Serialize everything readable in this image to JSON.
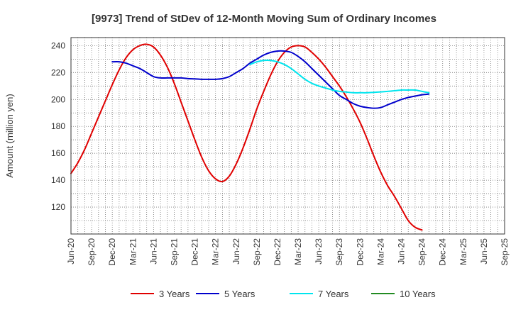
{
  "chart_data": {
    "type": "line",
    "title": "[9973]  Trend of StDev of 12-Month Moving Sum of Ordinary Incomes",
    "xlabel": "",
    "ylabel": "Amount (million yen)",
    "ylim": [
      100,
      246
    ],
    "yticks": [
      120,
      140,
      160,
      180,
      200,
      220,
      240
    ],
    "x_ticks": [
      "Jun-20",
      "Sep-20",
      "Dec-20",
      "Mar-21",
      "Jun-21",
      "Sep-21",
      "Dec-21",
      "Mar-22",
      "Jun-22",
      "Sep-22",
      "Dec-22",
      "Mar-23",
      "Jun-23",
      "Sep-23",
      "Dec-23",
      "Mar-24",
      "Jun-24",
      "Sep-24",
      "Dec-24",
      "Mar-25",
      "Jun-25",
      "Sep-25"
    ],
    "grid": true,
    "legend_position": "bottom",
    "series": [
      {
        "name": "3 Years",
        "color": "#e00000",
        "values": [
          [
            0,
            145
          ],
          [
            1,
            153
          ],
          [
            2,
            163
          ],
          [
            3,
            175
          ],
          [
            4,
            187
          ],
          [
            5,
            199
          ],
          [
            6,
            211
          ],
          [
            7,
            222
          ],
          [
            8,
            231
          ],
          [
            9,
            237
          ],
          [
            10,
            240
          ],
          [
            11,
            241
          ],
          [
            12,
            239
          ],
          [
            13,
            233
          ],
          [
            14,
            224
          ],
          [
            15,
            212
          ],
          [
            16,
            198
          ],
          [
            17,
            184
          ],
          [
            18,
            170
          ],
          [
            19,
            157
          ],
          [
            20,
            147
          ],
          [
            21,
            141
          ],
          [
            22,
            139
          ],
          [
            23,
            143
          ],
          [
            24,
            152
          ],
          [
            25,
            164
          ],
          [
            26,
            178
          ],
          [
            27,
            193
          ],
          [
            28,
            206
          ],
          [
            29,
            218
          ],
          [
            30,
            228
          ],
          [
            31,
            235
          ],
          [
            32,
            239
          ],
          [
            33,
            240
          ],
          [
            34,
            239
          ],
          [
            35,
            235
          ],
          [
            36,
            230
          ],
          [
            37,
            224
          ],
          [
            38,
            217
          ],
          [
            39,
            210
          ],
          [
            40,
            202
          ],
          [
            41,
            193
          ],
          [
            42,
            183
          ],
          [
            43,
            171
          ],
          [
            44,
            158
          ],
          [
            45,
            146
          ],
          [
            46,
            136
          ],
          [
            47,
            128
          ],
          [
            48,
            119
          ],
          [
            49,
            110
          ],
          [
            50,
            105
          ],
          [
            51,
            103
          ]
        ]
      },
      {
        "name": "5 Years",
        "color": "#0000cc",
        "values": [
          [
            6,
            228
          ],
          [
            7,
            228
          ],
          [
            8,
            227
          ],
          [
            9,
            225
          ],
          [
            10,
            223
          ],
          [
            11,
            220
          ],
          [
            12,
            217
          ],
          [
            13,
            216
          ],
          [
            14,
            216
          ],
          [
            15,
            216
          ],
          [
            16,
            216
          ],
          [
            17,
            215.5
          ],
          [
            18,
            215.3
          ],
          [
            19,
            215
          ],
          [
            20,
            215
          ],
          [
            21,
            215
          ],
          [
            22,
            215.5
          ],
          [
            23,
            217
          ],
          [
            24,
            220
          ],
          [
            25,
            223
          ],
          [
            26,
            227
          ],
          [
            27,
            230
          ],
          [
            28,
            233
          ],
          [
            29,
            235
          ],
          [
            30,
            236
          ],
          [
            31,
            236
          ],
          [
            32,
            235
          ],
          [
            33,
            232
          ],
          [
            34,
            228
          ],
          [
            35,
            223
          ],
          [
            36,
            218
          ],
          [
            37,
            213
          ],
          [
            38,
            208
          ],
          [
            39,
            203
          ],
          [
            40,
            200
          ],
          [
            41,
            197
          ],
          [
            42,
            195
          ],
          [
            43,
            194
          ],
          [
            44,
            193.5
          ],
          [
            45,
            194
          ],
          [
            46,
            196
          ],
          [
            47,
            198
          ],
          [
            48,
            200
          ],
          [
            49,
            201.5
          ],
          [
            50,
            202.5
          ],
          [
            51,
            203.5
          ],
          [
            52,
            204
          ]
        ]
      },
      {
        "name": "7 Years",
        "color": "#00e5ee",
        "values": [
          [
            26,
            226
          ],
          [
            27,
            228
          ],
          [
            28,
            229
          ],
          [
            29,
            229
          ],
          [
            30,
            228
          ],
          [
            31,
            226
          ],
          [
            32,
            223
          ],
          [
            33,
            219
          ],
          [
            34,
            215
          ],
          [
            35,
            212
          ],
          [
            36,
            210
          ],
          [
            37,
            208.5
          ],
          [
            38,
            207
          ],
          [
            39,
            206
          ],
          [
            40,
            205.5
          ],
          [
            41,
            205
          ],
          [
            42,
            205
          ],
          [
            43,
            205
          ],
          [
            44,
            205.3
          ],
          [
            45,
            205.6
          ],
          [
            46,
            206
          ],
          [
            47,
            206.5
          ],
          [
            48,
            207
          ],
          [
            49,
            207
          ],
          [
            50,
            207
          ],
          [
            51,
            206
          ],
          [
            52,
            205
          ]
        ]
      },
      {
        "name": "10 Years",
        "color": "#228b22",
        "values": []
      }
    ]
  }
}
